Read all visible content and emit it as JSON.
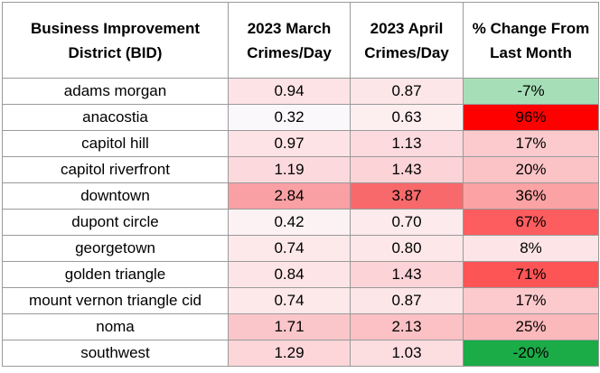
{
  "table": {
    "headers": [
      [
        "Business Improvement",
        "District (BID)"
      ],
      [
        "2023 March",
        "Crimes/Day"
      ],
      [
        "2023 April",
        "Crimes/Day"
      ],
      [
        "% Change From",
        "Last Month"
      ]
    ],
    "rows": [
      {
        "bid": "adams morgan",
        "march": "0.94",
        "april": "0.87",
        "change": "-7%",
        "march_color": "#fde3e5",
        "april_color": "#fde6e8",
        "change_color": "#a6dfb7"
      },
      {
        "bid": "anacostia",
        "march": "0.32",
        "april": "0.63",
        "change": "96%",
        "march_color": "#fbf8fb",
        "april_color": "#fdeef0",
        "change_color": "#fe0000"
      },
      {
        "bid": "capitol hill",
        "march": "0.97",
        "april": "1.13",
        "change": "17%",
        "march_color": "#fde3e5",
        "april_color": "#fcdadd",
        "change_color": "#fccacd"
      },
      {
        "bid": "capitol riverfront",
        "march": "1.19",
        "april": "1.43",
        "change": "20%",
        "march_color": "#fcd9dc",
        "april_color": "#fcd3d6",
        "change_color": "#fcc3c6"
      },
      {
        "bid": "downtown",
        "march": "2.84",
        "april": "3.87",
        "change": "36%",
        "march_color": "#f8a0a3",
        "april_color": "#f8696b",
        "change_color": "#fba2a4"
      },
      {
        "bid": "dupont circle",
        "march": "0.42",
        "april": "0.70",
        "change": "67%",
        "march_color": "#fcf2f4",
        "april_color": "#fdeaec",
        "change_color": "#fd5d5f"
      },
      {
        "bid": "georgetown",
        "march": "0.74",
        "april": "0.80",
        "change": "8%",
        "march_color": "#fde8ea",
        "april_color": "#fde7e9",
        "change_color": "#fde4e6"
      },
      {
        "bid": "golden triangle",
        "march": "0.84",
        "april": "1.43",
        "change": "71%",
        "march_color": "#fde5e7",
        "april_color": "#fcd3d6",
        "change_color": "#fd5556"
      },
      {
        "bid": "mount vernon triangle cid",
        "march": "0.74",
        "april": "0.87",
        "change": "17%",
        "march_color": "#fde8ea",
        "april_color": "#fde6e8",
        "change_color": "#fccacd"
      },
      {
        "bid": "noma",
        "march": "1.71",
        "april": "2.13",
        "change": "25%",
        "march_color": "#fbc6c9",
        "april_color": "#fbc1c4",
        "change_color": "#fcb9bc"
      },
      {
        "bid": "southwest",
        "march": "1.29",
        "april": "1.03",
        "change": "-20%",
        "march_color": "#fcd6d9",
        "april_color": "#fcdee1",
        "change_color": "#1bab47"
      }
    ]
  }
}
